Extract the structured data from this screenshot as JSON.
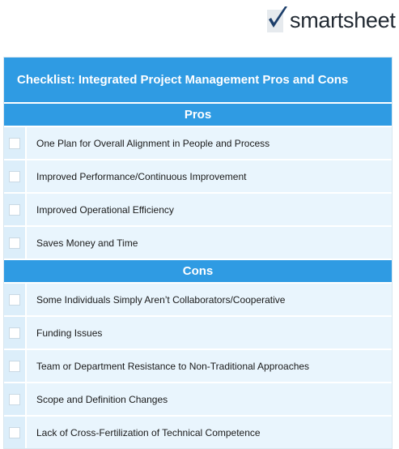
{
  "brand": {
    "logo_text": "smartsheet",
    "logo_icon": "checkmark-logo-icon",
    "accent": "#2f9be3"
  },
  "title": "Checklist: Integrated Project Management Pros and Cons",
  "pros": {
    "heading": "Pros",
    "items": [
      {
        "label": "One Plan for Overall Alignment in People and Process",
        "checked": false
      },
      {
        "label": "Improved Performance/Continuous Improvement",
        "checked": false
      },
      {
        "label": "Improved Operational Efficiency",
        "checked": false
      },
      {
        "label": "Saves Money and Time",
        "checked": false
      }
    ]
  },
  "cons": {
    "heading": "Cons",
    "items": [
      {
        "label": "Some Individuals Simply Aren’t Collaborators/Cooperative",
        "checked": false
      },
      {
        "label": "Funding Issues",
        "checked": false
      },
      {
        "label": "Team or Department Resistance to Non-Traditional Approaches",
        "checked": false
      },
      {
        "label": "Scope and Definition Changes",
        "checked": false
      },
      {
        "label": "Lack of Cross-Fertilization of Technical Competence",
        "checked": false
      }
    ]
  }
}
